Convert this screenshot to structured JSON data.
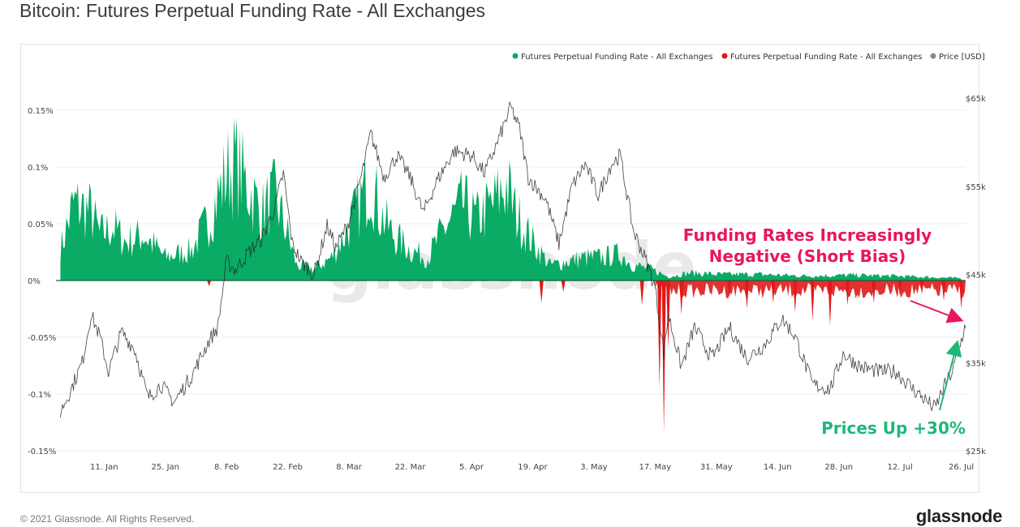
{
  "title": "Bitcoin: Futures Perpetual Funding Rate - All Exchanges",
  "footer": {
    "copyright": "© 2021 Glassnode. All Rights Reserved.",
    "logo": "glassnode"
  },
  "watermark": "glassnode",
  "chart_data": {
    "type": "bar",
    "title": "Bitcoin: Futures Perpetual Funding Rate - All Exchanges",
    "legend_placement": "top-right",
    "grid": true,
    "x": {
      "type": "date",
      "range": [
        "2020-12-31",
        "2021-07-27"
      ],
      "tick_labels": [
        "11. Jan",
        "25. Jan",
        "8. Feb",
        "22. Feb",
        "8. Mar",
        "22. Mar",
        "5. Apr",
        "19. Apr",
        "3. May",
        "17. May",
        "31. May",
        "14. Jun",
        "28. Jun",
        "12. Jul",
        "26. Jul"
      ],
      "tick_dates": [
        "2021-01-11",
        "2021-01-25",
        "2021-02-08",
        "2021-02-22",
        "2021-03-08",
        "2021-03-22",
        "2021-04-05",
        "2021-04-19",
        "2021-05-03",
        "2021-05-17",
        "2021-05-31",
        "2021-06-14",
        "2021-06-28",
        "2021-07-12",
        "2021-07-26"
      ]
    },
    "y_left": {
      "unit": "%",
      "range": [
        -0.15,
        0.15
      ],
      "tick_values": [
        0.15,
        0.1,
        0.05,
        0,
        -0.05,
        -0.1,
        -0.15
      ],
      "tick_labels": [
        "0.15%",
        "0.1%",
        "0.05%",
        "0%",
        "-0.05%",
        "-0.1%",
        "-0.15%"
      ]
    },
    "y_right": {
      "unit": "USD",
      "range": [
        25000,
        65000
      ],
      "tick_values": [
        65000,
        55000,
        45000,
        35000,
        25000
      ],
      "tick_labels": [
        "$65k",
        "$55k",
        "$45k",
        "$35k",
        "$25k"
      ]
    },
    "series": [
      {
        "name": "Futures Perpetual Funding Rate - All Exchanges",
        "color": "#0aab64",
        "axis": "left",
        "kind": "bar-positive",
        "points": [
          [
            "2021-01-01",
            0.04
          ],
          [
            "2021-01-04",
            0.1
          ],
          [
            "2021-01-08",
            0.09
          ],
          [
            "2021-01-10",
            0.06
          ],
          [
            "2021-01-13",
            0.07
          ],
          [
            "2021-01-16",
            0.05
          ],
          [
            "2021-01-20",
            0.06
          ],
          [
            "2021-01-25",
            0.03
          ],
          [
            "2021-01-31",
            0.04
          ],
          [
            "2021-02-04",
            0.08
          ],
          [
            "2021-02-08",
            0.14
          ],
          [
            "2021-02-10",
            0.155
          ],
          [
            "2021-02-13",
            0.12
          ],
          [
            "2021-02-16",
            0.09
          ],
          [
            "2021-02-19",
            0.11
          ],
          [
            "2021-02-22",
            0.06
          ],
          [
            "2021-02-24",
            0.02
          ],
          [
            "2021-02-28",
            0.015
          ],
          [
            "2021-03-04",
            0.03
          ],
          [
            "2021-03-07",
            0.06
          ],
          [
            "2021-03-10",
            0.095
          ],
          [
            "2021-03-13",
            0.135
          ],
          [
            "2021-03-15",
            0.09
          ],
          [
            "2021-03-18",
            0.06
          ],
          [
            "2021-03-22",
            0.04
          ],
          [
            "2021-03-26",
            0.03
          ],
          [
            "2021-03-30",
            0.07
          ],
          [
            "2021-04-03",
            0.1
          ],
          [
            "2021-04-06",
            0.08
          ],
          [
            "2021-04-10",
            0.1
          ],
          [
            "2021-04-13",
            0.125
          ],
          [
            "2021-04-15",
            0.09
          ],
          [
            "2021-04-19",
            0.05
          ],
          [
            "2021-04-23",
            0.02
          ],
          [
            "2021-04-27",
            0.025
          ],
          [
            "2021-05-01",
            0.03
          ],
          [
            "2021-05-05",
            0.03
          ],
          [
            "2021-05-09",
            0.035
          ],
          [
            "2021-05-12",
            0.02
          ],
          [
            "2021-05-16",
            0.015
          ],
          [
            "2021-05-20",
            0.005
          ],
          [
            "2021-05-25",
            0.01
          ],
          [
            "2021-06-01",
            0.008
          ],
          [
            "2021-06-10",
            0.008
          ],
          [
            "2021-06-20",
            0.006
          ],
          [
            "2021-07-01",
            0.007
          ],
          [
            "2021-07-10",
            0.006
          ],
          [
            "2021-07-26",
            0.003
          ]
        ]
      },
      {
        "name": "Futures Perpetual Funding Rate - All Exchanges",
        "color": "#e01a1a",
        "axis": "left",
        "kind": "bar-negative",
        "points": [
          [
            "2021-02-04",
            -0.005
          ],
          [
            "2021-04-21",
            -0.02
          ],
          [
            "2021-04-26",
            -0.01
          ],
          [
            "2021-05-14",
            -0.022
          ],
          [
            "2021-05-18",
            -0.095
          ],
          [
            "2021-05-19",
            -0.135
          ],
          [
            "2021-05-20",
            -0.06
          ],
          [
            "2021-05-23",
            -0.03
          ],
          [
            "2021-06-03",
            -0.015
          ],
          [
            "2021-06-07",
            -0.025
          ],
          [
            "2021-06-13",
            -0.02
          ],
          [
            "2021-06-18",
            -0.028
          ],
          [
            "2021-06-22",
            -0.035
          ],
          [
            "2021-06-26",
            -0.04
          ],
          [
            "2021-06-30",
            -0.022
          ],
          [
            "2021-07-06",
            -0.02
          ],
          [
            "2021-07-12",
            -0.015
          ],
          [
            "2021-07-17",
            -0.012
          ],
          [
            "2021-07-22",
            -0.018
          ],
          [
            "2021-07-26",
            -0.025
          ]
        ]
      },
      {
        "name": "Price [USD]",
        "color": "#888888",
        "axis": "right",
        "kind": "line",
        "points": [
          [
            "2021-01-01",
            29400
          ],
          [
            "2021-01-03",
            31500
          ],
          [
            "2021-01-06",
            35000
          ],
          [
            "2021-01-08",
            40500
          ],
          [
            "2021-01-10",
            38000
          ],
          [
            "2021-01-12",
            34000
          ],
          [
            "2021-01-15",
            38500
          ],
          [
            "2021-01-18",
            36500
          ],
          [
            "2021-01-21",
            31000
          ],
          [
            "2021-01-24",
            32500
          ],
          [
            "2021-01-27",
            30500
          ],
          [
            "2021-01-31",
            33500
          ],
          [
            "2021-02-04",
            37500
          ],
          [
            "2021-02-06",
            39000
          ],
          [
            "2021-02-08",
            46500
          ],
          [
            "2021-02-10",
            45500
          ],
          [
            "2021-02-13",
            47500
          ],
          [
            "2021-02-16",
            49000
          ],
          [
            "2021-02-19",
            52500
          ],
          [
            "2021-02-21",
            56500
          ],
          [
            "2021-02-23",
            48500
          ],
          [
            "2021-02-25",
            46500
          ],
          [
            "2021-02-28",
            45000
          ],
          [
            "2021-03-03",
            50500
          ],
          [
            "2021-03-05",
            48000
          ],
          [
            "2021-03-08",
            51000
          ],
          [
            "2021-03-11",
            56500
          ],
          [
            "2021-03-13",
            61000
          ],
          [
            "2021-03-16",
            56000
          ],
          [
            "2021-03-19",
            58500
          ],
          [
            "2021-03-22",
            56000
          ],
          [
            "2021-03-25",
            52000
          ],
          [
            "2021-03-28",
            55500
          ],
          [
            "2021-04-01",
            59000
          ],
          [
            "2021-04-05",
            58500
          ],
          [
            "2021-04-08",
            56500
          ],
          [
            "2021-04-11",
            60000
          ],
          [
            "2021-04-14",
            64000
          ],
          [
            "2021-04-16",
            61500
          ],
          [
            "2021-04-18",
            56000
          ],
          [
            "2021-04-22",
            53500
          ],
          [
            "2021-04-25",
            48500
          ],
          [
            "2021-04-28",
            55000
          ],
          [
            "2021-05-01",
            57500
          ],
          [
            "2021-05-04",
            54000
          ],
          [
            "2021-05-07",
            57500
          ],
          [
            "2021-05-09",
            58500
          ],
          [
            "2021-05-12",
            50000
          ],
          [
            "2021-05-15",
            46500
          ],
          [
            "2021-05-17",
            43500
          ],
          [
            "2021-05-19",
            36000
          ],
          [
            "2021-05-20",
            40500
          ],
          [
            "2021-05-23",
            34500
          ],
          [
            "2021-05-26",
            39000
          ],
          [
            "2021-05-30",
            35500
          ],
          [
            "2021-06-03",
            39000
          ],
          [
            "2021-06-07",
            35500
          ],
          [
            "2021-06-11",
            37000
          ],
          [
            "2021-06-15",
            40000
          ],
          [
            "2021-06-18",
            38000
          ],
          [
            "2021-06-22",
            32500
          ],
          [
            "2021-06-26",
            32000
          ],
          [
            "2021-06-29",
            36000
          ],
          [
            "2021-07-03",
            34500
          ],
          [
            "2021-07-07",
            34000
          ],
          [
            "2021-07-11",
            34000
          ],
          [
            "2021-07-15",
            32000
          ],
          [
            "2021-07-20",
            29800
          ],
          [
            "2021-07-22",
            32200
          ],
          [
            "2021-07-24",
            34000
          ],
          [
            "2021-07-26",
            37500
          ],
          [
            "2021-07-27",
            39500
          ]
        ]
      }
    ],
    "annotations": [
      {
        "text": "Funding Rates Increasingly Negative (Short Bias)",
        "color": "#e8175d"
      },
      {
        "text": "Prices Up +30%",
        "color": "#1db87a"
      }
    ]
  }
}
